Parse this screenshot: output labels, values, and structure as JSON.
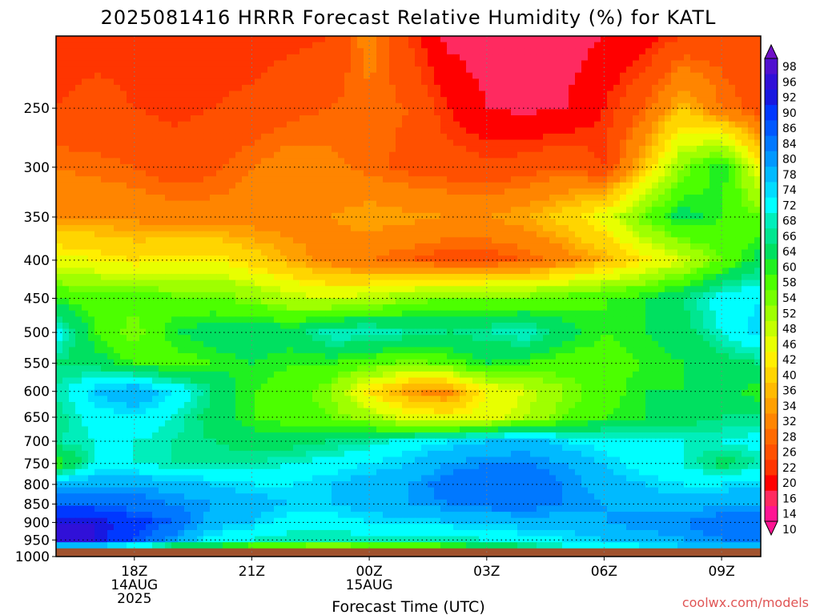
{
  "chart_data": {
    "type": "heatmap",
    "title": "2025081416 HRRR Forecast Relative Humidity (%) for KATL",
    "xlabel": "Forecast Time (UTC)",
    "ylabel": "",
    "credit": "coolwx.com/models",
    "x_ticks": [
      {
        "hour": 2,
        "lines": [
          "18Z",
          "14AUG",
          "2025"
        ]
      },
      {
        "hour": 5,
        "lines": [
          "21Z"
        ]
      },
      {
        "hour": 8,
        "lines": [
          "00Z",
          "15AUG"
        ]
      },
      {
        "hour": 11,
        "lines": [
          "03Z"
        ]
      },
      {
        "hour": 14,
        "lines": [
          "06Z"
        ]
      },
      {
        "hour": 17,
        "lines": [
          "09Z"
        ]
      }
    ],
    "x_range_hours": [
      0,
      18
    ],
    "y_ticks": [
      250,
      300,
      350,
      400,
      450,
      500,
      550,
      600,
      650,
      700,
      750,
      800,
      850,
      900,
      950,
      1000
    ],
    "y_range_hpa": [
      200,
      1000
    ],
    "y_scale": "log-pressure",
    "ground_hpa": 975,
    "ground_color": "#a0522d",
    "grid": "dotted",
    "colorbar": {
      "labels": [
        10,
        14,
        16,
        20,
        22,
        26,
        28,
        32,
        34,
        36,
        40,
        42,
        46,
        48,
        52,
        54,
        58,
        60,
        64,
        66,
        68,
        72,
        74,
        78,
        80,
        84,
        86,
        90,
        92,
        96,
        98
      ],
      "colors": [
        "#ff1493",
        "#ff2a60",
        "#ff0000",
        "#ff3500",
        "#ff5000",
        "#ff6a00",
        "#ff8500",
        "#ffa000",
        "#ffba00",
        "#ffd500",
        "#ffef00",
        "#e8ff00",
        "#c4ff00",
        "#9fff00",
        "#75ff00",
        "#4cff00",
        "#20f020",
        "#00e060",
        "#00e690",
        "#00eebb",
        "#00ffff",
        "#00dcff",
        "#00baff",
        "#0098ff",
        "#0078ff",
        "#0058ff",
        "#0038ff",
        "#1818e0",
        "#3010d8",
        "#5010d0",
        "#7010c8"
      ]
    },
    "levels_hpa": [
      200,
      250,
      300,
      350,
      400,
      450,
      500,
      550,
      600,
      650,
      700,
      750,
      800,
      850,
      900,
      950,
      975
    ],
    "times_hours": [
      0,
      1,
      2,
      3,
      4,
      5,
      6,
      7,
      8,
      9,
      10,
      11,
      12,
      13,
      14,
      15,
      16,
      17,
      18
    ],
    "values": [
      [
        20,
        21,
        21,
        21,
        20,
        20,
        21,
        22,
        30,
        22,
        15,
        14,
        14,
        14,
        16,
        18,
        22,
        24,
        24
      ],
      [
        22,
        23,
        22,
        21,
        22,
        23,
        25,
        26,
        27,
        26,
        20,
        16,
        15,
        16,
        20,
        26,
        36,
        28,
        24
      ],
      [
        28,
        27,
        26,
        24,
        25,
        28,
        30,
        29,
        27,
        25,
        24,
        23,
        24,
        26,
        22,
        36,
        52,
        60,
        42
      ],
      [
        32,
        32,
        31,
        30,
        30,
        30,
        30,
        32,
        34,
        33,
        32,
        32,
        34,
        38,
        44,
        54,
        62,
        58,
        54
      ],
      [
        44,
        42,
        40,
        42,
        42,
        38,
        34,
        30,
        28,
        26,
        24,
        24,
        26,
        30,
        34,
        40,
        46,
        54,
        62
      ],
      [
        58,
        56,
        56,
        55,
        55,
        52,
        48,
        46,
        48,
        52,
        54,
        54,
        54,
        56,
        58,
        60,
        64,
        70,
        72
      ],
      [
        70,
        58,
        52,
        60,
        62,
        64,
        62,
        68,
        68,
        66,
        64,
        66,
        68,
        62,
        58,
        60,
        62,
        68,
        74
      ],
      [
        64,
        62,
        58,
        56,
        58,
        60,
        58,
        58,
        56,
        52,
        56,
        60,
        58,
        56,
        56,
        58,
        60,
        62,
        64
      ],
      [
        66,
        74,
        78,
        72,
        64,
        58,
        56,
        52,
        40,
        32,
        30,
        42,
        46,
        52,
        56,
        60,
        60,
        62,
        58
      ],
      [
        64,
        70,
        72,
        68,
        62,
        58,
        56,
        54,
        50,
        44,
        42,
        44,
        48,
        54,
        58,
        60,
        62,
        64,
        64
      ],
      [
        66,
        68,
        68,
        66,
        64,
        62,
        62,
        64,
        66,
        70,
        72,
        74,
        76,
        72,
        70,
        68,
        68,
        68,
        70
      ],
      [
        56,
        68,
        68,
        66,
        66,
        66,
        68,
        70,
        72,
        74,
        78,
        80,
        80,
        78,
        74,
        70,
        68,
        62,
        66
      ],
      [
        76,
        78,
        78,
        76,
        74,
        72,
        72,
        74,
        76,
        78,
        82,
        84,
        84,
        80,
        76,
        74,
        72,
        72,
        74
      ],
      [
        84,
        84,
        82,
        80,
        78,
        76,
        74,
        74,
        76,
        78,
        80,
        82,
        82,
        80,
        78,
        76,
        76,
        78,
        78
      ],
      [
        92,
        92,
        88,
        84,
        76,
        74,
        70,
        70,
        72,
        72,
        74,
        74,
        76,
        76,
        78,
        80,
        80,
        82,
        82
      ],
      [
        94,
        92,
        86,
        78,
        70,
        68,
        66,
        66,
        66,
        66,
        66,
        68,
        70,
        72,
        74,
        76,
        78,
        80,
        80
      ],
      [
        68,
        66,
        62,
        56,
        56,
        52,
        48,
        46,
        48,
        50,
        54,
        58,
        62,
        66,
        68,
        70,
        72,
        74,
        76
      ]
    ]
  }
}
